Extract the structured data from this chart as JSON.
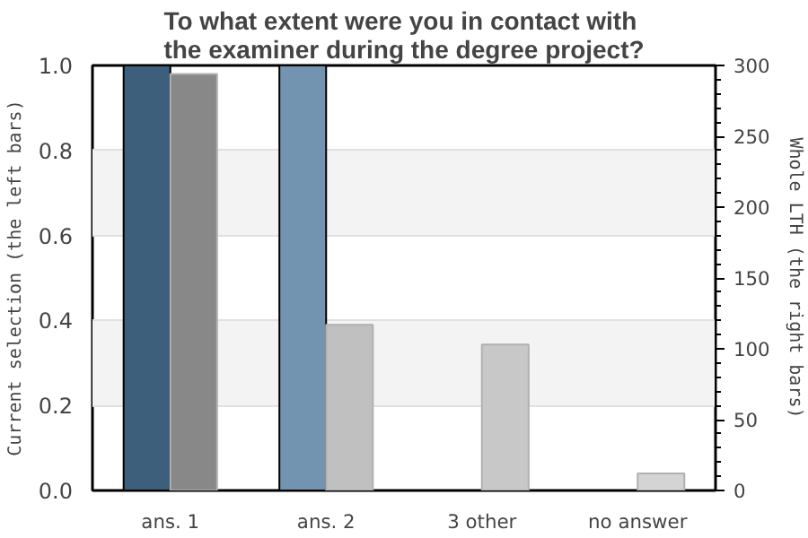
{
  "chart_data": {
    "type": "bar",
    "title": "To what extent were you in contact with\nthe examiner during the degree project?",
    "categories": [
      "ans. 1",
      "ans. 2",
      "3 other",
      "no answer"
    ],
    "ylabel": "Current selection (the left bars)",
    "y2label": "Whole LTH (the right bars)",
    "series": [
      {
        "colors": [
          "#3e5f7b",
          "#7294b0",
          "#7294b0",
          "#7294b0"
        ],
        "values": [
          1.0,
          1.0,
          0,
          0
        ]
      },
      {
        "axis": "y2",
        "colors": [
          "#888888",
          "#c0c0c0",
          "#c8c8c8",
          "#d4d4d4"
        ],
        "values": [
          294,
          117,
          103,
          12
        ]
      }
    ],
    "ylim": [
      0,
      1
    ],
    "yticks": [
      {
        "value": 0,
        "label": "0.0"
      },
      0.2,
      0.4,
      0.6,
      0.8,
      {
        "value": 1,
        "label": "1.0"
      }
    ],
    "y2lim": [
      0,
      300
    ],
    "y2ticks": [
      0,
      50,
      100,
      150,
      200,
      250,
      300
    ],
    "grid": "y"
  }
}
